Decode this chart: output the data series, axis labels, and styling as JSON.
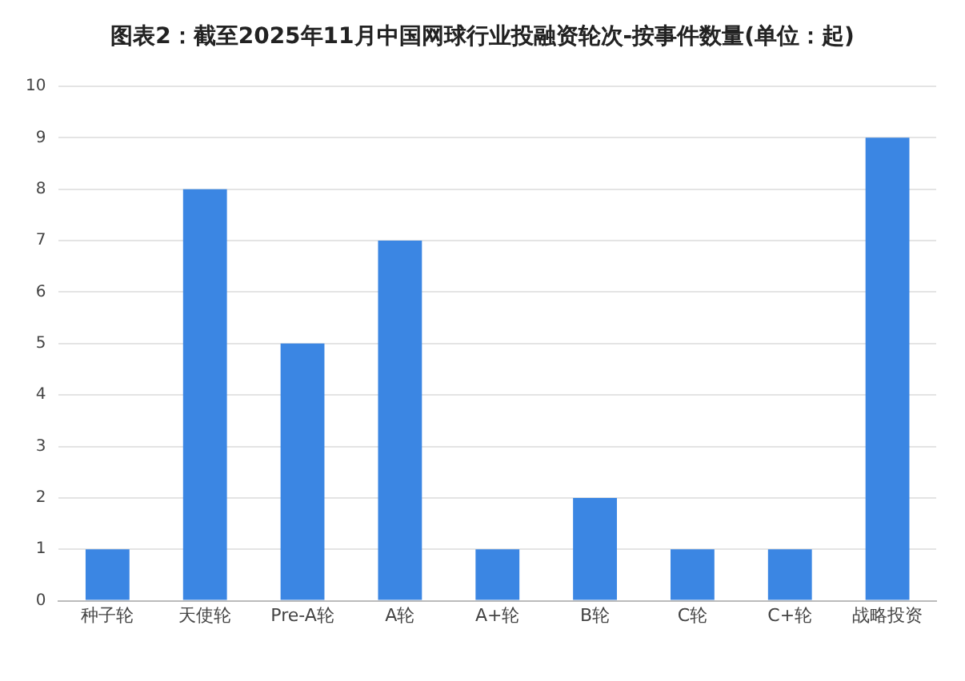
{
  "chart_data": {
    "type": "bar",
    "title": "图表2：截至2025年11月中国网球行业投融资轮次-按事件数量(单位：起)",
    "categories": [
      "种子轮",
      "天使轮",
      "Pre-A轮",
      "A轮",
      "A+轮",
      "B轮",
      "C轮",
      "C+轮",
      "战略投资"
    ],
    "values": [
      1,
      8,
      5,
      7,
      1,
      2,
      1,
      1,
      9
    ],
    "color": "#3b86e3",
    "ylim": [
      0,
      10
    ],
    "yticks": [
      0,
      1,
      2,
      3,
      4,
      5,
      6,
      7,
      8,
      9,
      10
    ],
    "grid": "y",
    "legend": false
  }
}
